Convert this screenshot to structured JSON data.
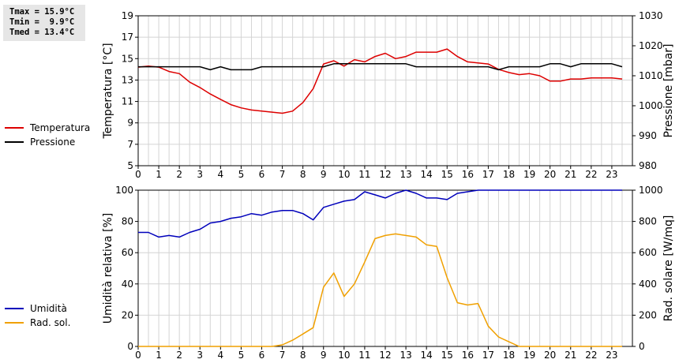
{
  "stats": {
    "lines": [
      "Tmax = 15.9°C",
      "Tmin =  9.9°C",
      "Tmed = 13.4°C"
    ]
  },
  "legend_top": [
    {
      "label": "Temperatura",
      "color": "#dd0000"
    },
    {
      "label": "Pressione",
      "color": "#000000"
    }
  ],
  "legend_bottom": [
    {
      "label": "Umidità",
      "color": "#0000bb"
    },
    {
      "label": "Rad. sol.",
      "color": "#f0a000"
    }
  ],
  "chart_data": [
    {
      "type": "line",
      "ylabel": "Temperatura [°C]",
      "ylabel_right": "Pressione [mbar]",
      "xlim": [
        0,
        24
      ],
      "ylim": [
        5,
        19
      ],
      "ylim_right": [
        980,
        1030
      ],
      "yticks": [
        5,
        7,
        9,
        11,
        13,
        15,
        17,
        19
      ],
      "yticks_right": [
        980,
        990,
        1000,
        1010,
        1020,
        1030
      ],
      "xticks": [
        0,
        1,
        2,
        3,
        4,
        5,
        6,
        7,
        8,
        9,
        10,
        11,
        12,
        13,
        14,
        15,
        16,
        17,
        18,
        19,
        20,
        21,
        22,
        23
      ],
      "grid": true,
      "series": [
        {
          "name": "Temperatura",
          "axis": "left",
          "color": "#dd0000",
          "x": [
            0,
            0.5,
            1,
            1.5,
            2,
            2.5,
            3,
            3.5,
            4,
            4.5,
            5,
            5.5,
            6,
            6.5,
            7,
            7.5,
            8,
            8.5,
            9,
            9.5,
            10,
            10.5,
            11,
            11.5,
            12,
            12.5,
            13,
            13.5,
            14,
            14.5,
            15,
            15.5,
            16,
            16.5,
            17,
            17.5,
            18,
            18.5,
            19,
            19.5,
            20,
            20.5,
            21,
            21.5,
            22,
            22.5,
            23,
            23.5
          ],
          "y": [
            14.2,
            14.3,
            14.2,
            13.8,
            13.6,
            12.8,
            12.3,
            11.7,
            11.2,
            10.7,
            10.4,
            10.2,
            10.1,
            10.0,
            9.9,
            10.1,
            10.9,
            12.2,
            14.5,
            14.8,
            14.3,
            14.9,
            14.7,
            15.2,
            15.5,
            15.0,
            15.2,
            15.6,
            15.6,
            15.6,
            15.9,
            15.2,
            14.7,
            14.6,
            14.5,
            14.0,
            13.7,
            13.5,
            13.6,
            13.4,
            12.9,
            12.9,
            13.1,
            13.1,
            13.2,
            13.2,
            13.2,
            13.1
          ]
        },
        {
          "name": "Pressione",
          "axis": "right",
          "color": "#000000",
          "x": [
            0,
            0.5,
            1,
            1.5,
            2,
            2.5,
            3,
            3.5,
            4,
            4.5,
            5,
            5.5,
            6,
            6.5,
            7,
            7.5,
            8,
            8.5,
            9,
            9.5,
            10,
            10.5,
            11,
            11.5,
            12,
            12.5,
            13,
            13.5,
            14,
            14.5,
            15,
            15.5,
            16,
            16.5,
            17,
            17.5,
            18,
            18.5,
            19,
            19.5,
            20,
            20.5,
            21,
            21.5,
            22,
            22.5,
            23,
            23.5
          ],
          "y": [
            1013,
            1013,
            1013,
            1013,
            1013,
            1013,
            1013,
            1012,
            1013,
            1012,
            1012,
            1012,
            1013,
            1013,
            1013,
            1013,
            1013,
            1013,
            1013,
            1014,
            1014,
            1014,
            1014,
            1014,
            1014,
            1014,
            1014,
            1013,
            1013,
            1013,
            1013,
            1013,
            1013,
            1013,
            1013,
            1012,
            1013,
            1013,
            1013,
            1013,
            1014,
            1014,
            1013,
            1014,
            1014,
            1014,
            1014,
            1013
          ]
        }
      ]
    },
    {
      "type": "line",
      "ylabel": "Umidità relativa [%]",
      "ylabel_right": "Rad. solare [W/mq]",
      "xlim": [
        0,
        24
      ],
      "ylim": [
        0,
        100
      ],
      "ylim_right": [
        0,
        1000
      ],
      "yticks": [
        0,
        20,
        40,
        60,
        80,
        100
      ],
      "yticks_right": [
        0,
        200,
        400,
        600,
        800,
        1000
      ],
      "xticks": [
        0,
        1,
        2,
        3,
        4,
        5,
        6,
        7,
        8,
        9,
        10,
        11,
        12,
        13,
        14,
        15,
        16,
        17,
        18,
        19,
        20,
        21,
        22,
        23
      ],
      "grid": true,
      "series": [
        {
          "name": "Umidità",
          "axis": "left",
          "color": "#0000bb",
          "x": [
            0,
            0.5,
            1,
            1.5,
            2,
            2.5,
            3,
            3.5,
            4,
            4.5,
            5,
            5.5,
            6,
            6.5,
            7,
            7.5,
            8,
            8.5,
            9,
            9.5,
            10,
            10.5,
            11,
            11.5,
            12,
            12.5,
            13,
            13.5,
            14,
            14.5,
            15,
            15.5,
            16,
            16.5,
            17,
            17.5,
            18,
            18.5,
            19,
            19.5,
            20,
            20.5,
            21,
            21.5,
            22,
            22.5,
            23,
            23.5
          ],
          "y": [
            73,
            73,
            70,
            71,
            70,
            73,
            75,
            79,
            80,
            82,
            83,
            85,
            84,
            86,
            87,
            87,
            85,
            81,
            89,
            91,
            93,
            94,
            99,
            97,
            95,
            98,
            100,
            98,
            95,
            95,
            94,
            98,
            99,
            100,
            100,
            100,
            100,
            100,
            100,
            100,
            100,
            100,
            100,
            100,
            100,
            100,
            100,
            100
          ]
        },
        {
          "name": "Rad. sol.",
          "axis": "right",
          "color": "#f0a000",
          "x": [
            0,
            0.5,
            1,
            1.5,
            2,
            2.5,
            3,
            3.5,
            4,
            4.5,
            5,
            5.5,
            6,
            6.5,
            7,
            7.5,
            8,
            8.5,
            9,
            9.5,
            10,
            10.5,
            11,
            11.5,
            12,
            12.5,
            13,
            13.5,
            14,
            14.5,
            15,
            15.5,
            16,
            16.5,
            17,
            17.5,
            18,
            18.5,
            19,
            19.5,
            20,
            20.5,
            21,
            21.5,
            22,
            22.5,
            23,
            23.5
          ],
          "y": [
            0,
            0,
            0,
            0,
            0,
            0,
            0,
            0,
            0,
            0,
            0,
            0,
            0,
            0,
            10,
            40,
            80,
            120,
            380,
            470,
            320,
            400,
            540,
            690,
            710,
            720,
            710,
            700,
            650,
            640,
            440,
            280,
            265,
            275,
            130,
            60,
            30,
            0,
            0,
            0,
            0,
            0,
            0,
            0,
            0,
            0,
            0,
            0
          ]
        }
      ]
    }
  ]
}
